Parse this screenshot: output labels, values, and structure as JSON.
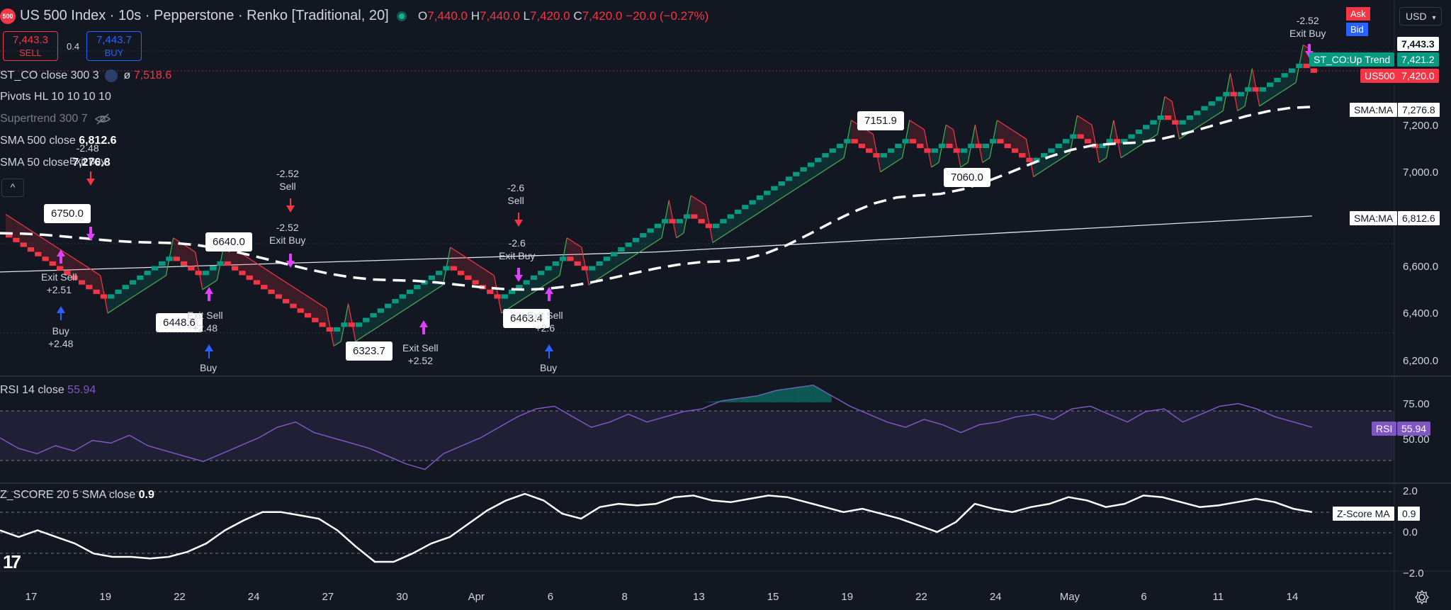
{
  "header": {
    "logo_text": "500",
    "title": "US 500 Index · 10s · Pepperstone · Renko [Traditional, 20]",
    "ohlc": [
      {
        "key": "O",
        "value": "7,440.0"
      },
      {
        "key": "H",
        "value": "7,440.0"
      },
      {
        "key": "L",
        "value": "7,420.0"
      },
      {
        "key": "C",
        "value": "7,420.0"
      }
    ],
    "change": "−20.0 (−0.27%)"
  },
  "trade": {
    "sell_price": "7,443.3",
    "sell_label": "SELL",
    "spread": "0.4",
    "buy_price": "7,443.7",
    "buy_label": "BUY"
  },
  "legend": {
    "st_co_name": "ST_CO close 300 3",
    "st_co_symbol": "ø",
    "st_co_value": "7,518.6",
    "pivots_name": "Pivots HL 10 10 10 10",
    "supertrend_name": "Supertrend 300 7",
    "sma500_name": "SMA 500 close",
    "sma500_value": "6,812.6",
    "sma50_name": "SMA 50 close",
    "sma50_value": "7,276.8",
    "collapse_icon": "^"
  },
  "rsi_pane": {
    "name": "RSI 14 close",
    "value": "55.94"
  },
  "zscore_pane": {
    "name": "Z_SCORE 20 5 SMA close",
    "value": "0.9"
  },
  "price_axis": {
    "ticks": [
      "7,200.0",
      "7,000.0",
      "6,600.0",
      "6,400.0",
      "6,200.0"
    ],
    "currency": "USD",
    "ask_label": "Ask",
    "bid_label": "Bid",
    "ask_price": "7,443.3",
    "st_co_tag": "ST_CO:Up Trend",
    "st_co_price": "7,421.2",
    "symbol_tag": "US500",
    "symbol_price": "7,420.0",
    "sma_tag_1": "SMA:MA",
    "sma_price_1": "7,276.8",
    "sma_tag_2": "SMA:MA",
    "sma_price_2": "6,812.6"
  },
  "rsi_axis": {
    "ticks": [
      "75.00",
      "50.00"
    ],
    "tag": "RSI",
    "tag_value": "55.94"
  },
  "z_axis": {
    "ticks": [
      "2.0",
      "0.0",
      "−2.0"
    ],
    "tag": "Z-Score MA",
    "tag_value": "0.9"
  },
  "time_axis": [
    "17",
    "19",
    "22",
    "24",
    "27",
    "30",
    "Apr",
    "6",
    "8",
    "13",
    "15",
    "19",
    "22",
    "24",
    "May",
    "6",
    "11",
    "14"
  ],
  "callouts": {
    "c1": "6750.0",
    "c2": "6640.0",
    "c3": "6448.6",
    "c4": "6323.7",
    "c5": "6463.4",
    "c6": "7151.9",
    "c7": "7060.0"
  },
  "signals": {
    "s_exit_buy_top": "-2.52\nExit Buy",
    "s_exit_buy_a": "-2.48\nExit Buy",
    "s_exit_sell_a": "Exit Sell\n+2.51",
    "s_buy_a": "Buy\n+2.48",
    "s_exit_sell_b": "Exit Sell\n+2.48",
    "s_buy_b": "Buy",
    "s_sell_b": "-2.52\nSell",
    "s_exit_buy_b": "-2.52\nExit Buy",
    "s_exit_sell_c": "Exit Sell\n+2.52",
    "s_sell_c": "-2.6\nSell",
    "s_exit_buy_c": "-2.6\nExit Buy",
    "s_exit_sell_d": "Exit Sell\n+2.6",
    "s_buy_d": "Buy"
  },
  "icons": {
    "eye_off": "eye-off-icon",
    "settings": "gear-icon",
    "tv_logo_text": "17"
  },
  "chart_data": {
    "type": "renko",
    "brick_size": 20,
    "y_range_price": [
      6150,
      7520
    ],
    "up_color": "#089981",
    "down_color": "#f23645",
    "renko_path": [
      6740,
      6700,
      6640,
      6540,
      6460,
      6480,
      6520,
      6560,
      6620,
      6640,
      6600,
      6560,
      6560,
      6620,
      6580,
      6520,
      6440,
      6360,
      6320,
      6360,
      6340,
      6380,
      6420,
      6480,
      6540,
      6580,
      6600,
      6560,
      6520,
      6480,
      6460,
      6500,
      6540,
      6600,
      6640,
      6580,
      6620,
      6700,
      6760,
      6800,
      6780,
      6820,
      6760,
      6820,
      6900,
      6960,
      7040,
      7100,
      7140,
      7100,
      7060,
      7100,
      7140,
      7080,
      7120,
      7080,
      7120,
      7100,
      7140,
      7100,
      7060,
      7040,
      7080,
      7120,
      7160,
      7120,
      7100,
      7140,
      7120,
      7160,
      7200,
      7240,
      7200,
      7220,
      7260,
      7300,
      7340,
      7320,
      7360,
      7340,
      7380,
      7420,
      7460,
      7440,
      7420
    ],
    "sma500": [
      [
        0,
        6575
      ],
      [
        0.5,
        6660
      ],
      [
        1.0,
        6812.6
      ]
    ],
    "sma50": [
      [
        0,
        6740
      ],
      [
        0.12,
        6700
      ],
      [
        0.3,
        6540
      ],
      [
        0.4,
        6500
      ],
      [
        0.55,
        6620
      ],
      [
        0.7,
        6900
      ],
      [
        0.85,
        7120
      ],
      [
        1.0,
        7276.8
      ]
    ],
    "rsi_range": [
      20,
      90
    ],
    "rsi": [
      48,
      40,
      36,
      42,
      38,
      46,
      44,
      50,
      42,
      38,
      34,
      30,
      36,
      42,
      48,
      56,
      60,
      52,
      48,
      44,
      40,
      34,
      28,
      24,
      36,
      42,
      48,
      56,
      64,
      70,
      72,
      64,
      56,
      60,
      66,
      60,
      64,
      68,
      70,
      76,
      78,
      80,
      84,
      86,
      88,
      80,
      72,
      66,
      60,
      56,
      62,
      58,
      52,
      58,
      60,
      64,
      66,
      62,
      70,
      72,
      66,
      60,
      68,
      70,
      60,
      66,
      72,
      74,
      70,
      64,
      60,
      56
    ],
    "z_range": [
      -2.4,
      2.3
    ],
    "zscore": [
      -0.2,
      -0.6,
      -0.2,
      -0.6,
      -1.0,
      -1.6,
      -1.8,
      -1.8,
      -1.9,
      -1.8,
      -1.5,
      -1.0,
      -0.2,
      0.4,
      0.9,
      0.9,
      0.7,
      0.5,
      -0.2,
      -1.2,
      -2.1,
      -2.1,
      -1.6,
      -1.0,
      -0.6,
      0.2,
      1.0,
      1.6,
      2.0,
      1.6,
      0.8,
      0.5,
      1.2,
      1.4,
      1.3,
      1.4,
      1.8,
      1.9,
      1.6,
      1.5,
      1.7,
      1.9,
      1.8,
      1.5,
      1.2,
      0.9,
      1.1,
      0.8,
      0.5,
      0.1,
      -0.3,
      0.3,
      1.4,
      1.1,
      0.9,
      1.2,
      1.4,
      1.8,
      1.6,
      1.2,
      1.4,
      1.9,
      1.8,
      1.5,
      1.2,
      1.3,
      1.5,
      1.7,
      1.5,
      1.1,
      0.9
    ]
  }
}
